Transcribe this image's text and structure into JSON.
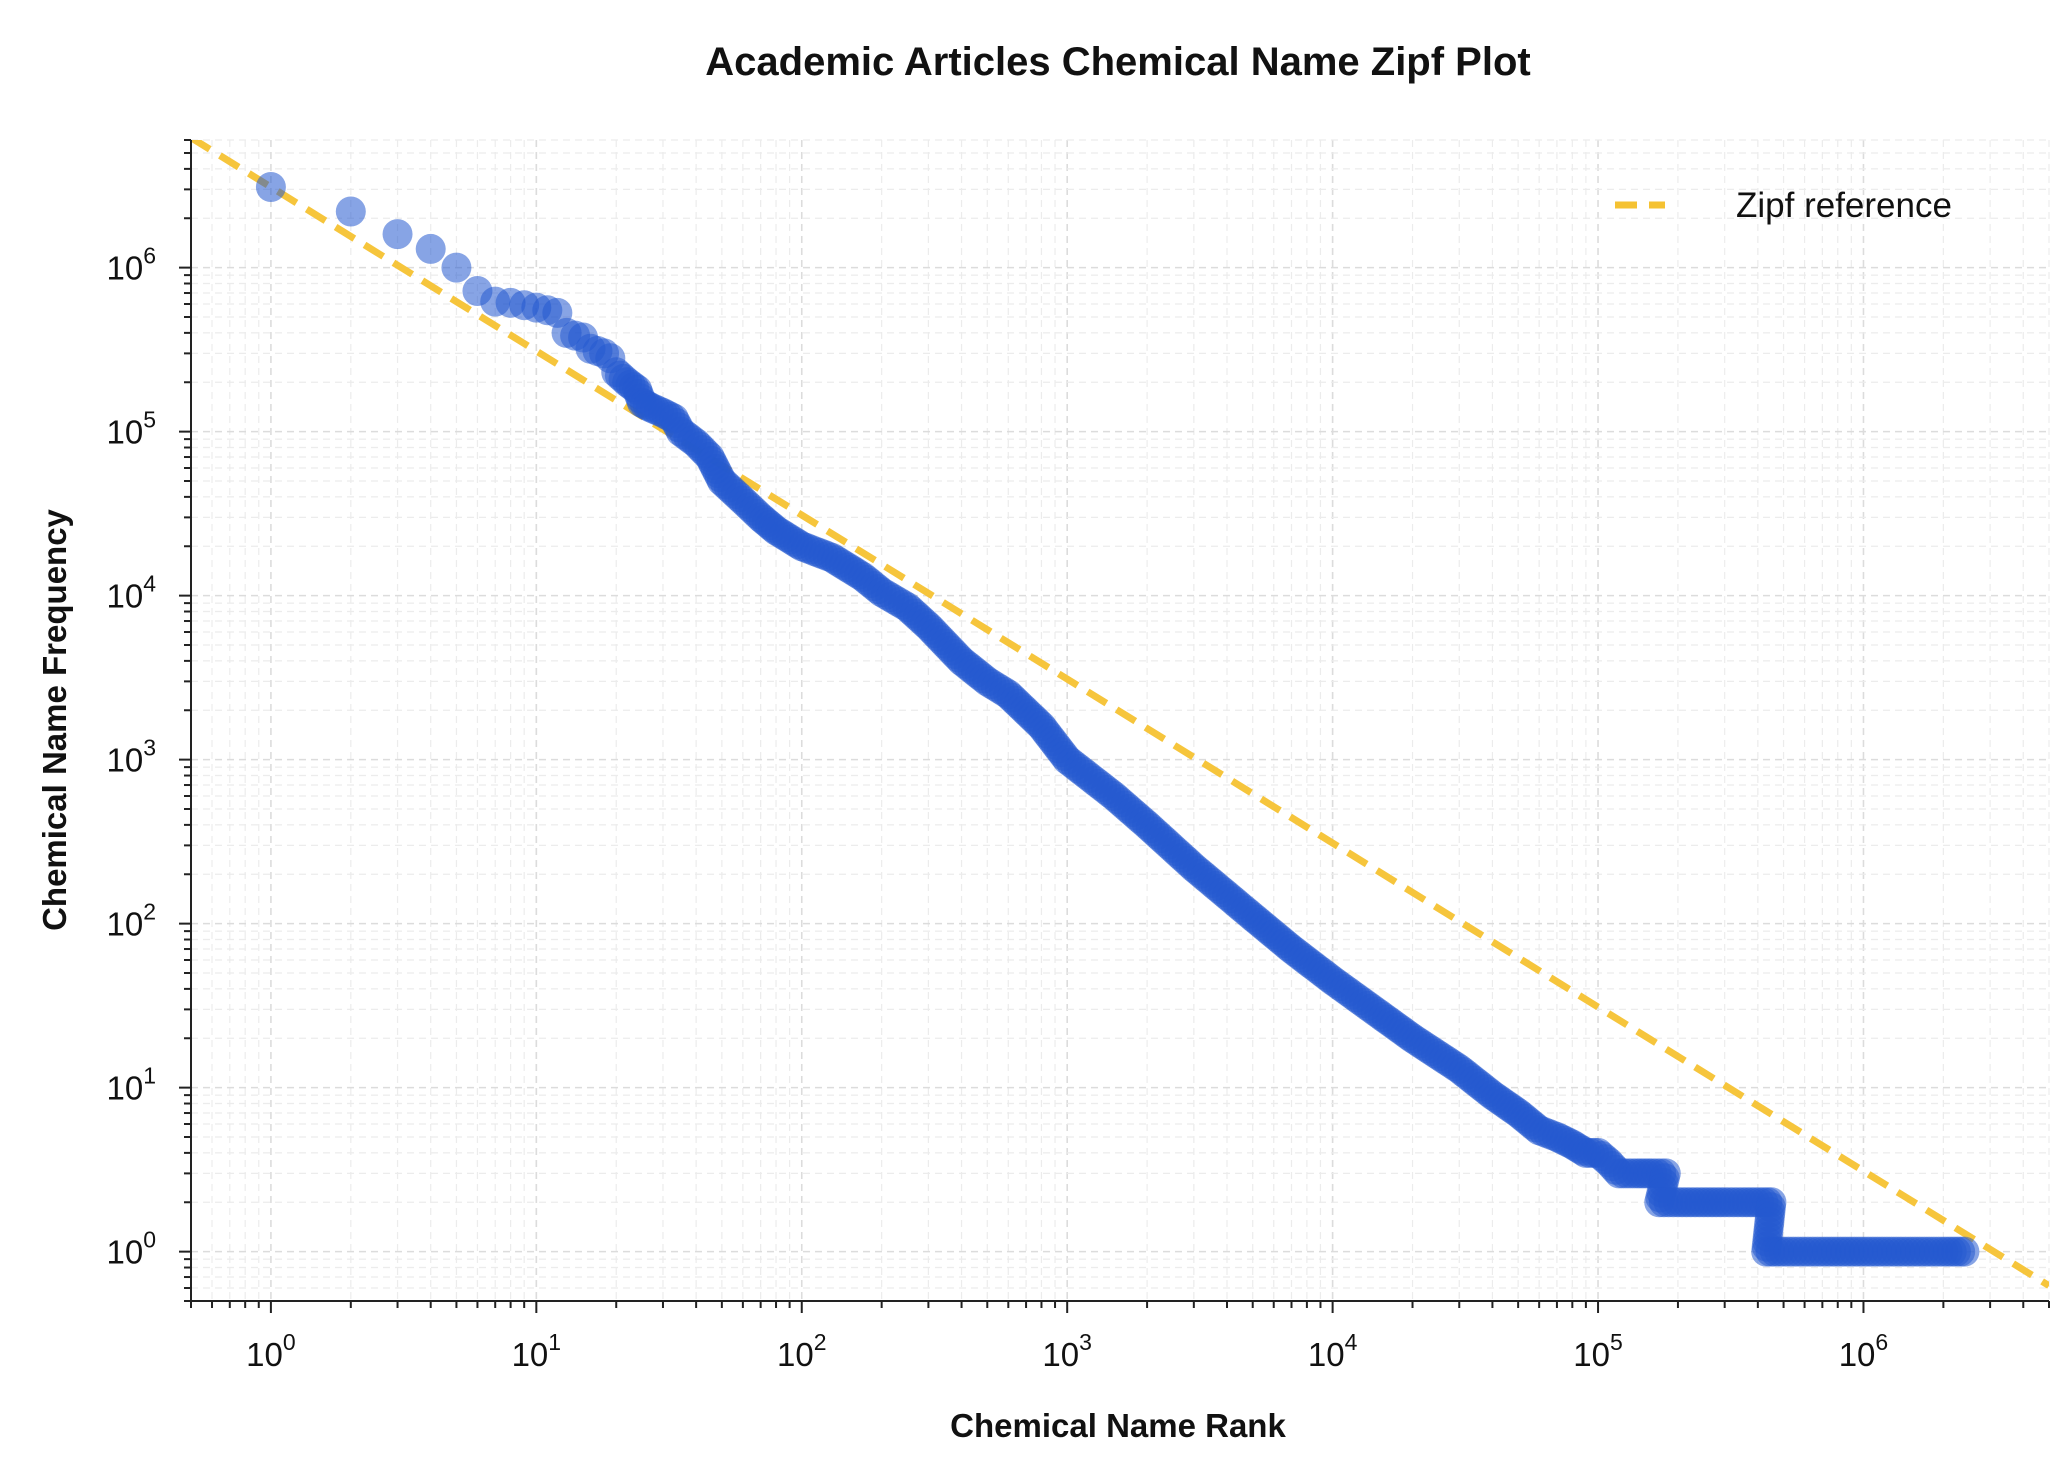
{
  "chart_data": {
    "type": "scatter",
    "title": "Academic Articles Chemical Name Zipf Plot",
    "xlabel": "Chemical Name Rank",
    "ylabel": "Chemical Name Frequency",
    "x_scale": "log",
    "y_scale": "log",
    "xlim": [
      0.5,
      5000000
    ],
    "ylim": [
      0.5,
      6000000
    ],
    "x_ticks": [
      {
        "base": "10",
        "exp": "0",
        "value": 1
      },
      {
        "base": "10",
        "exp": "1",
        "value": 10
      },
      {
        "base": "10",
        "exp": "2",
        "value": 100
      },
      {
        "base": "10",
        "exp": "3",
        "value": 1000
      },
      {
        "base": "10",
        "exp": "4",
        "value": 10000
      },
      {
        "base": "10",
        "exp": "5",
        "value": 100000
      },
      {
        "base": "10",
        "exp": "6",
        "value": 1000000
      }
    ],
    "y_ticks": [
      {
        "base": "10",
        "exp": "0",
        "value": 1
      },
      {
        "base": "10",
        "exp": "1",
        "value": 10
      },
      {
        "base": "10",
        "exp": "2",
        "value": 100
      },
      {
        "base": "10",
        "exp": "3",
        "value": 1000
      },
      {
        "base": "10",
        "exp": "4",
        "value": 10000
      },
      {
        "base": "10",
        "exp": "5",
        "value": 100000
      },
      {
        "base": "10",
        "exp": "6",
        "value": 1000000
      }
    ],
    "grid": true,
    "legend_position": "top-right",
    "series": [
      {
        "kind": "scatter",
        "color": "#2459cf",
        "points": [
          [
            1,
            3100000
          ],
          [
            2,
            2200000
          ],
          [
            3,
            1600000
          ],
          [
            4,
            1300000
          ],
          [
            5,
            1000000
          ],
          [
            6,
            720000
          ],
          [
            7,
            620000
          ],
          [
            8,
            610000
          ],
          [
            9,
            590000
          ],
          [
            10,
            570000
          ],
          [
            11,
            550000
          ],
          [
            12,
            530000
          ],
          [
            13,
            400000
          ],
          [
            14,
            385000
          ],
          [
            15,
            375000
          ],
          [
            16,
            320000
          ],
          [
            17,
            310000
          ],
          [
            18,
            300000
          ],
          [
            19,
            280000
          ],
          [
            20,
            230000
          ],
          [
            22,
            200000
          ],
          [
            24,
            180000
          ],
          [
            25,
            150000
          ],
          [
            27,
            140000
          ],
          [
            30,
            130000
          ],
          [
            33,
            120000
          ],
          [
            35,
            100000
          ],
          [
            40,
            85000
          ],
          [
            45,
            70000
          ],
          [
            50,
            50000
          ],
          [
            60,
            38000
          ],
          [
            70,
            30000
          ],
          [
            80,
            25000
          ],
          [
            100,
            20000
          ],
          [
            130,
            17000
          ],
          [
            170,
            13000
          ],
          [
            200,
            10500
          ],
          [
            250,
            8500
          ],
          [
            300,
            6500
          ],
          [
            400,
            4000
          ],
          [
            500,
            3000
          ],
          [
            600,
            2500
          ],
          [
            800,
            1600
          ],
          [
            1000,
            1000
          ],
          [
            1500,
            600
          ],
          [
            2000,
            400
          ],
          [
            3000,
            220
          ],
          [
            5000,
            110
          ],
          [
            7000,
            70
          ],
          [
            10000,
            45
          ],
          [
            15000,
            28
          ],
          [
            20000,
            20
          ],
          [
            30000,
            13
          ],
          [
            40000,
            9
          ],
          [
            50000,
            7
          ],
          [
            60000,
            5.5
          ],
          [
            70000,
            5
          ],
          [
            80000,
            4.5
          ],
          [
            90000,
            4
          ],
          [
            100000,
            4
          ],
          [
            110000,
            3.5
          ],
          [
            120000,
            3
          ],
          [
            140000,
            3
          ],
          [
            160000,
            3
          ],
          [
            180000,
            3
          ],
          [
            170000,
            2
          ],
          [
            200000,
            2
          ],
          [
            250000,
            2
          ],
          [
            300000,
            2
          ],
          [
            350000,
            2
          ],
          [
            420000,
            2
          ],
          [
            450000,
            2
          ],
          [
            430000,
            1
          ],
          [
            500000,
            1
          ],
          [
            700000,
            1
          ],
          [
            1000000,
            1
          ],
          [
            1500000,
            1
          ],
          [
            2000000,
            1
          ],
          [
            2400000,
            1
          ]
        ]
      },
      {
        "kind": "line",
        "name": "Zipf reference",
        "style": "dashed",
        "color": "#f5c232",
        "x": [
          0.5,
          5000000
        ],
        "y": [
          6200000,
          0.62
        ]
      }
    ]
  }
}
